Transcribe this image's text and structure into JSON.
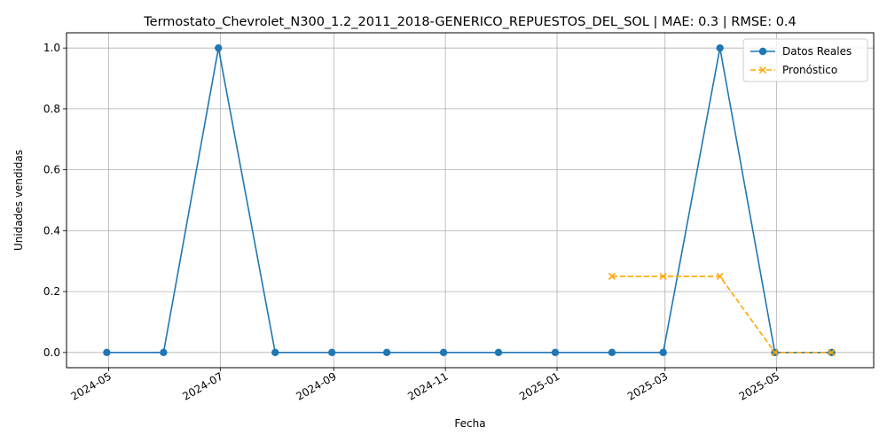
{
  "chart_data": {
    "type": "line",
    "title": "Termostato_Chevrolet_N300_1.2_2011_2018-GENERICO_REPUESTOS_DEL_SOL | MAE: 0.3 | RMSE: 0.4",
    "xlabel": "Fecha",
    "ylabel": "Unidades vendidas",
    "x_tick_labels": [
      "2024-05",
      "2024-07",
      "2024-09",
      "2024-11",
      "2025-01",
      "2025-03",
      "2025-05"
    ],
    "y_tick_labels": [
      "0.0",
      "0.2",
      "0.4",
      "0.6",
      "0.8",
      "1.0"
    ],
    "ylim": [
      -0.05,
      1.05
    ],
    "xlim": [
      "2024-04-08",
      "2025-06-23"
    ],
    "grid": true,
    "legend_position": "top-right",
    "series": [
      {
        "name": "Datos Reales",
        "color": "#1f77b4",
        "style": "solid",
        "marker": "circle",
        "x": [
          "2024-04-30",
          "2024-05-31",
          "2024-06-30",
          "2024-07-31",
          "2024-08-31",
          "2024-09-30",
          "2024-10-31",
          "2024-11-30",
          "2024-12-31",
          "2025-01-31",
          "2025-02-28",
          "2025-03-31",
          "2025-04-30",
          "2025-05-31"
        ],
        "values": [
          0,
          0,
          1,
          0,
          0,
          0,
          0,
          0,
          0,
          0,
          0,
          1,
          0,
          0
        ]
      },
      {
        "name": "Pronóstico",
        "color": "#ffa500",
        "style": "dashed",
        "marker": "x",
        "x": [
          "2025-01-31",
          "2025-02-28",
          "2025-03-31",
          "2025-04-30",
          "2025-05-31"
        ],
        "values": [
          0.25,
          0.25,
          0.25,
          0,
          0
        ]
      }
    ]
  }
}
